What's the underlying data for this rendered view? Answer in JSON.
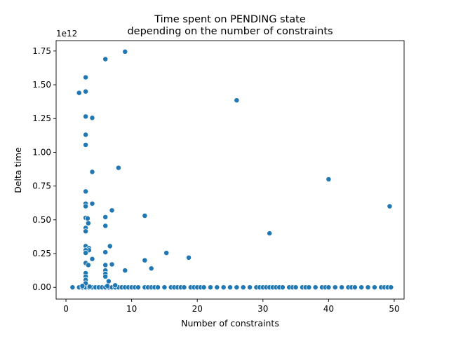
{
  "chart_data": {
    "type": "scatter",
    "title_line1": "Time spent on PENDING state",
    "title_line2": "depending on the number of constraints",
    "xlabel": "Number of constraints",
    "ylabel": "Delta time",
    "y_offset_label": "1e12",
    "xlim": [
      -1.5,
      51.5
    ],
    "ylim": [
      -87000000000.0,
      1827000000000.0
    ],
    "x_ticks": [
      0,
      10,
      20,
      30,
      40,
      50
    ],
    "x_tick_labels": [
      "0",
      "10",
      "20",
      "30",
      "40",
      "50"
    ],
    "y_ticks": [
      0,
      250000000000.0,
      500000000000.0,
      750000000000.0,
      1000000000000.0,
      1250000000000.0,
      1500000000000.0,
      1750000000000.0
    ],
    "y_tick_labels": [
      "0.00",
      "0.25",
      "0.50",
      "0.75",
      "1.00",
      "1.25",
      "1.50",
      "1.75"
    ],
    "grid": false,
    "legend": "none",
    "marker_color": "#1f77b4",
    "series": [
      {
        "points": [
          [
            1,
            0
          ],
          [
            2,
            0
          ],
          [
            2.5,
            0
          ],
          [
            3,
            0
          ],
          [
            3.5,
            0
          ],
          [
            4,
            0
          ],
          [
            4.5,
            0
          ],
          [
            5,
            0
          ],
          [
            5.5,
            0
          ],
          [
            6,
            0
          ],
          [
            6.5,
            0
          ],
          [
            7,
            0
          ],
          [
            7.5,
            0
          ],
          [
            8,
            0
          ],
          [
            8.5,
            0
          ],
          [
            9,
            0
          ],
          [
            9.5,
            0
          ],
          [
            10,
            0
          ],
          [
            10.5,
            0
          ],
          [
            11,
            0
          ],
          [
            12,
            0
          ],
          [
            12.5,
            0
          ],
          [
            13,
            0
          ],
          [
            13.5,
            0
          ],
          [
            14,
            0
          ],
          [
            15,
            0
          ],
          [
            16,
            0
          ],
          [
            16.5,
            0
          ],
          [
            17,
            0
          ],
          [
            17.5,
            0
          ],
          [
            18,
            0
          ],
          [
            19,
            0
          ],
          [
            19.5,
            0
          ],
          [
            20,
            0
          ],
          [
            20.5,
            0
          ],
          [
            21,
            0
          ],
          [
            22,
            0
          ],
          [
            23,
            0
          ],
          [
            24,
            0
          ],
          [
            25,
            0
          ],
          [
            26,
            0
          ],
          [
            27,
            0
          ],
          [
            28,
            0
          ],
          [
            29,
            0
          ],
          [
            29.5,
            0
          ],
          [
            30,
            0
          ],
          [
            30.5,
            0
          ],
          [
            31,
            0
          ],
          [
            31.5,
            0
          ],
          [
            32,
            0
          ],
          [
            32.5,
            0
          ],
          [
            33,
            0
          ],
          [
            34,
            0
          ],
          [
            34.5,
            0
          ],
          [
            35,
            0
          ],
          [
            36,
            0
          ],
          [
            36.5,
            0
          ],
          [
            37,
            0
          ],
          [
            38,
            0
          ],
          [
            39,
            0
          ],
          [
            39.5,
            0
          ],
          [
            40,
            0
          ],
          [
            41,
            0
          ],
          [
            42,
            0
          ],
          [
            43,
            0
          ],
          [
            43.5,
            0
          ],
          [
            44,
            0
          ],
          [
            45,
            0
          ],
          [
            46,
            0
          ],
          [
            47,
            0
          ],
          [
            48,
            0
          ],
          [
            48.5,
            0
          ],
          [
            49,
            0
          ],
          [
            49.5,
            0
          ],
          [
            2,
            1440000000000.0
          ],
          [
            3,
            1450000000000.0
          ],
          [
            3,
            1555000000000.0
          ],
          [
            3,
            1265000000000.0
          ],
          [
            3,
            1130000000000.0
          ],
          [
            3,
            1055000000000.0
          ],
          [
            4,
            1255000000000.0
          ],
          [
            4,
            855000000000.0
          ],
          [
            3,
            710000000000.0
          ],
          [
            3,
            620000000000.0
          ],
          [
            3,
            600000000000.0
          ],
          [
            4,
            620000000000.0
          ],
          [
            3,
            515000000000.0
          ],
          [
            3.3,
            510000000000.0
          ],
          [
            3.4,
            475000000000.0
          ],
          [
            3,
            440000000000.0
          ],
          [
            3,
            415000000000.0
          ],
          [
            3,
            305000000000.0
          ],
          [
            3.5,
            290000000000.0
          ],
          [
            3.5,
            275000000000.0
          ],
          [
            3,
            275000000000.0
          ],
          [
            3,
            255000000000.0
          ],
          [
            4,
            210000000000.0
          ],
          [
            3,
            180000000000.0
          ],
          [
            3.4,
            165000000000.0
          ],
          [
            3,
            105000000000.0
          ],
          [
            3,
            80000000000.0
          ],
          [
            3,
            55000000000.0
          ],
          [
            3,
            30000000000.0
          ],
          [
            2.5,
            10000000000.0
          ],
          [
            3.6,
            5000000000.0
          ],
          [
            6,
            1690000000000.0
          ],
          [
            9,
            1745000000000.0
          ],
          [
            8,
            885000000000.0
          ],
          [
            7,
            570000000000.0
          ],
          [
            6,
            520000000000.0
          ],
          [
            6,
            455000000000.0
          ],
          [
            6.7,
            305000000000.0
          ],
          [
            6,
            260000000000.0
          ],
          [
            7,
            170000000000.0
          ],
          [
            6,
            165000000000.0
          ],
          [
            6,
            125000000000.0
          ],
          [
            6,
            100000000000.0
          ],
          [
            6,
            80000000000.0
          ],
          [
            6.5,
            45000000000.0
          ],
          [
            9,
            125000000000.0
          ],
          [
            7.5,
            15000000000.0
          ],
          [
            6.3,
            10000000000.0
          ],
          [
            12,
            530000000000.0
          ],
          [
            12,
            200000000000.0
          ],
          [
            13,
            140000000000.0
          ],
          [
            15.3,
            255000000000.0
          ],
          [
            18.7,
            220000000000.0
          ],
          [
            26,
            1385000000000.0
          ],
          [
            31,
            400000000000.0
          ],
          [
            40,
            800000000000.0
          ],
          [
            49.3,
            600000000000.0
          ]
        ]
      }
    ]
  }
}
